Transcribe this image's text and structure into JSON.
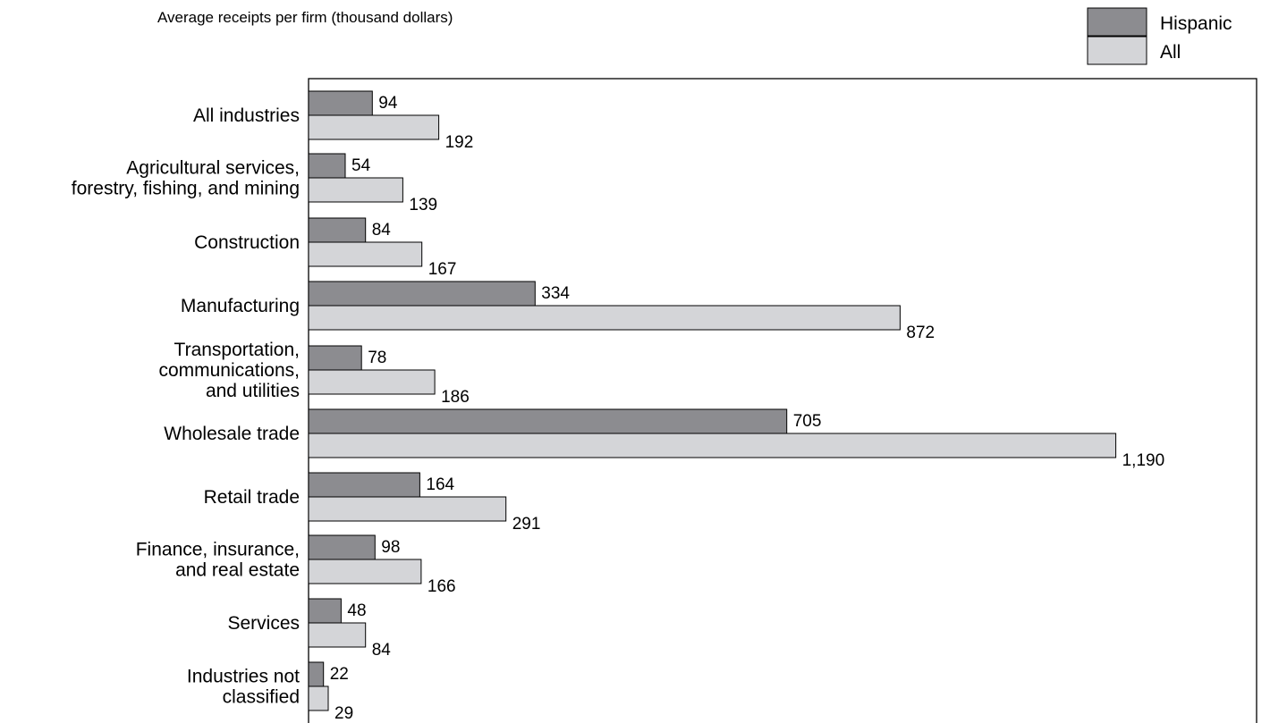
{
  "chart_data": {
    "type": "bar",
    "orientation": "horizontal",
    "title": "Average receipts per firm (thousand dollars)",
    "xlabel": "",
    "ylabel": "",
    "xlim": [
      0,
      1190
    ],
    "grid": false,
    "legend_position": "top-right",
    "categories": [
      [
        "All industries"
      ],
      [
        "Agricultural services,",
        "forestry, fishing, and mining"
      ],
      [
        "Construction"
      ],
      [
        "Manufacturing"
      ],
      [
        "Transportation,",
        "communications,",
        "and utilities"
      ],
      [
        "Wholesale trade"
      ],
      [
        "Retail trade"
      ],
      [
        "Finance, insurance,",
        "and real estate"
      ],
      [
        "Services"
      ],
      [
        "Industries not",
        "classified"
      ]
    ],
    "series": [
      {
        "name": "Hispanic",
        "color": "#8c8c90",
        "values": [
          94,
          54,
          84,
          334,
          78,
          705,
          164,
          98,
          48,
          22
        ],
        "labels": [
          "94",
          "54",
          "84",
          "334",
          "78",
          "705",
          "164",
          "98",
          "48",
          "22"
        ]
      },
      {
        "name": "All",
        "color": "#d4d5d8",
        "values": [
          192,
          139,
          167,
          872,
          186,
          1190,
          291,
          166,
          84,
          29
        ],
        "labels": [
          "192",
          "139",
          "167",
          "872",
          "186",
          "1,190",
          "291",
          "166",
          "84",
          "29"
        ]
      }
    ]
  }
}
